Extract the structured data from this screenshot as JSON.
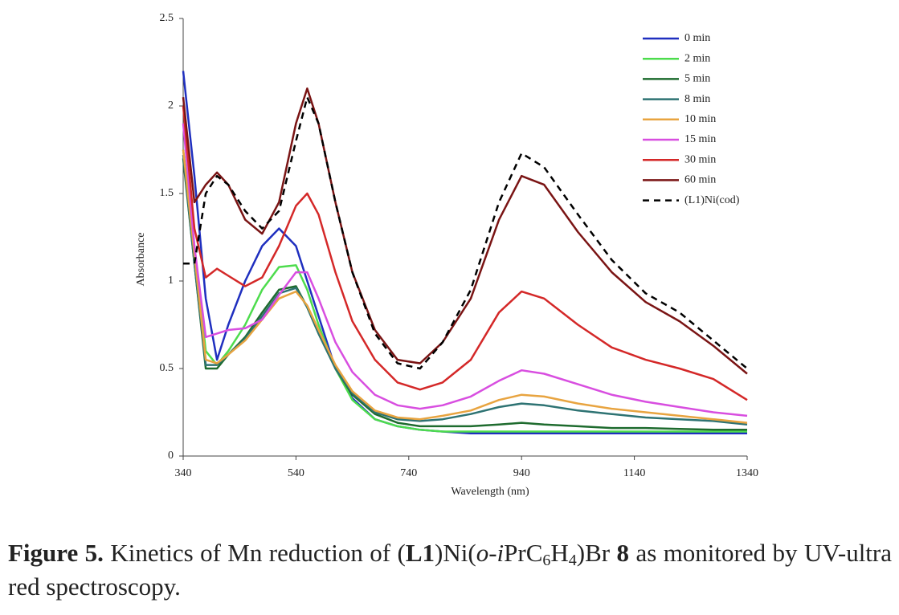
{
  "chart_data": {
    "type": "line",
    "xlabel": "Wavelength (nm)",
    "ylabel": "Absorbance",
    "x": [
      340,
      360,
      380,
      400,
      420,
      450,
      480,
      510,
      540,
      560,
      580,
      610,
      640,
      680,
      720,
      760,
      800,
      850,
      900,
      940,
      980,
      1040,
      1100,
      1160,
      1220,
      1280,
      1340
    ],
    "xlim": [
      340,
      1340
    ],
    "xticks": [
      340,
      540,
      740,
      940,
      1140,
      1340
    ],
    "ylim": [
      0,
      2.5
    ],
    "yticks": [
      0,
      0.5,
      1,
      1.5,
      2,
      2.5
    ],
    "legend": "upper right",
    "series": [
      {
        "name": "0 min",
        "color": "#1f2fbf",
        "values": [
          2.2,
          1.6,
          0.9,
          0.55,
          0.75,
          1.0,
          1.2,
          1.3,
          1.2,
          1.0,
          0.8,
          0.5,
          0.33,
          0.21,
          0.17,
          0.15,
          0.14,
          0.13,
          0.13,
          0.13,
          0.13,
          0.13,
          0.13,
          0.13,
          0.13,
          0.13,
          0.13
        ]
      },
      {
        "name": "2 min",
        "color": "#4ddc4d",
        "values": [
          1.75,
          1.2,
          0.6,
          0.52,
          0.6,
          0.75,
          0.95,
          1.08,
          1.09,
          0.95,
          0.75,
          0.5,
          0.32,
          0.21,
          0.17,
          0.15,
          0.14,
          0.14,
          0.14,
          0.14,
          0.14,
          0.14,
          0.14,
          0.14,
          0.14,
          0.14,
          0.14
        ]
      },
      {
        "name": "5 min",
        "color": "#1e6b2e",
        "values": [
          1.7,
          1.1,
          0.5,
          0.5,
          0.58,
          0.68,
          0.82,
          0.95,
          0.97,
          0.85,
          0.7,
          0.5,
          0.35,
          0.24,
          0.19,
          0.17,
          0.17,
          0.17,
          0.18,
          0.19,
          0.18,
          0.17,
          0.16,
          0.16,
          0.155,
          0.15,
          0.15
        ]
      },
      {
        "name": "8 min",
        "color": "#2e7373",
        "values": [
          1.72,
          1.1,
          0.52,
          0.52,
          0.58,
          0.67,
          0.8,
          0.93,
          0.96,
          0.85,
          0.7,
          0.5,
          0.36,
          0.25,
          0.21,
          0.2,
          0.21,
          0.24,
          0.28,
          0.3,
          0.29,
          0.26,
          0.24,
          0.22,
          0.21,
          0.2,
          0.18
        ]
      },
      {
        "name": "10 min",
        "color": "#e8a440",
        "values": [
          1.75,
          1.15,
          0.55,
          0.53,
          0.58,
          0.66,
          0.78,
          0.9,
          0.94,
          0.86,
          0.72,
          0.52,
          0.37,
          0.26,
          0.22,
          0.21,
          0.23,
          0.26,
          0.32,
          0.35,
          0.34,
          0.3,
          0.27,
          0.25,
          0.23,
          0.21,
          0.19
        ]
      },
      {
        "name": "15 min",
        "color": "#d84ee0",
        "values": [
          1.9,
          1.2,
          0.68,
          0.7,
          0.72,
          0.73,
          0.78,
          0.92,
          1.05,
          1.05,
          0.9,
          0.65,
          0.48,
          0.35,
          0.29,
          0.27,
          0.29,
          0.34,
          0.43,
          0.49,
          0.47,
          0.41,
          0.35,
          0.31,
          0.28,
          0.25,
          0.23
        ]
      },
      {
        "name": "30 min",
        "color": "#d42828",
        "values": [
          2.0,
          1.3,
          1.02,
          1.07,
          1.03,
          0.97,
          1.02,
          1.2,
          1.43,
          1.5,
          1.38,
          1.05,
          0.77,
          0.55,
          0.42,
          0.38,
          0.42,
          0.55,
          0.82,
          0.94,
          0.9,
          0.75,
          0.62,
          0.55,
          0.5,
          0.44,
          0.32
        ]
      },
      {
        "name": "60 min",
        "color": "#7a1414",
        "values": [
          2.05,
          1.45,
          1.55,
          1.62,
          1.55,
          1.35,
          1.27,
          1.45,
          1.9,
          2.1,
          1.9,
          1.45,
          1.05,
          0.72,
          0.55,
          0.53,
          0.65,
          0.9,
          1.35,
          1.6,
          1.55,
          1.28,
          1.05,
          0.88,
          0.77,
          0.63,
          0.47
        ]
      },
      {
        "name": "(L1)Ni(cod)",
        "color": "#000000",
        "dashed": true,
        "values": [
          1.1,
          1.1,
          1.5,
          1.6,
          1.55,
          1.4,
          1.3,
          1.4,
          1.8,
          2.05,
          1.9,
          1.45,
          1.05,
          0.7,
          0.53,
          0.5,
          0.65,
          0.95,
          1.45,
          1.73,
          1.65,
          1.38,
          1.12,
          0.93,
          0.82,
          0.66,
          0.5
        ]
      }
    ]
  },
  "caption": {
    "parts": [
      "Figure 5.",
      " Kinetics of Mn reduction of (",
      "L1",
      ")Ni(",
      "o",
      "-",
      "i",
      "PrC",
      "6",
      "H",
      "4",
      ")Br ",
      "8",
      " as monitored by UV-ultra red spectroscopy."
    ]
  }
}
